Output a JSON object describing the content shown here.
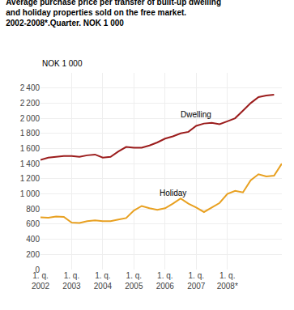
{
  "chart_data": {
    "type": "line",
    "title": "Average purchase price per transfer of built-up dwelling\nand holiday properties sold on the free market.\n2002-2008*.Quarter. NOK 1 000",
    "ylabel": "NOK 1 000",
    "categories": [
      "1. q.\n2002",
      null,
      null,
      null,
      "1. q.\n2003",
      null,
      null,
      null,
      "1. q.\n2004",
      null,
      null,
      null,
      "1. q.\n2005",
      null,
      null,
      null,
      "1. q.\n2006",
      null,
      null,
      null,
      "1. q.\n2007",
      null,
      null,
      null,
      "1. q.\n2008*",
      null,
      null,
      null,
      null,
      null,
      null,
      null
    ],
    "series": [
      {
        "name": "Dwelling",
        "color": "#9b1c1c",
        "values": [
          1450,
          1480,
          1490,
          1500,
          1500,
          1490,
          1510,
          1520,
          1480,
          1490,
          1560,
          1620,
          1610,
          1610,
          1640,
          1680,
          1730,
          1760,
          1800,
          1820,
          1900,
          1930,
          1940,
          1920,
          1960,
          2000,
          2100,
          2200,
          2280,
          2300,
          2310,
          null
        ]
      },
      {
        "name": "Holiday",
        "color": "#e8a020",
        "values": [
          690,
          685,
          700,
          695,
          620,
          615,
          640,
          650,
          640,
          640,
          660,
          680,
          780,
          840,
          810,
          790,
          810,
          870,
          940,
          870,
          820,
          760,
          820,
          880,
          1000,
          1040,
          1020,
          1180,
          1260,
          1230,
          1240,
          1400
        ]
      }
    ],
    "ylim": [
      0,
      2600
    ],
    "yticks": [
      0,
      200,
      400,
      600,
      800,
      {
        "value": 1000,
        "label": "1 000"
      },
      {
        "value": 1200,
        "label": "1 200"
      },
      {
        "value": 1400,
        "label": "1 400"
      },
      {
        "value": 1600,
        "label": "1 600"
      },
      {
        "value": 1800,
        "label": "1 800"
      },
      {
        "value": 2000,
        "label": "2 000"
      },
      {
        "value": 2200,
        "label": "2 200"
      },
      {
        "value": 2400,
        "label": "2 400"
      }
    ],
    "grid": true
  }
}
